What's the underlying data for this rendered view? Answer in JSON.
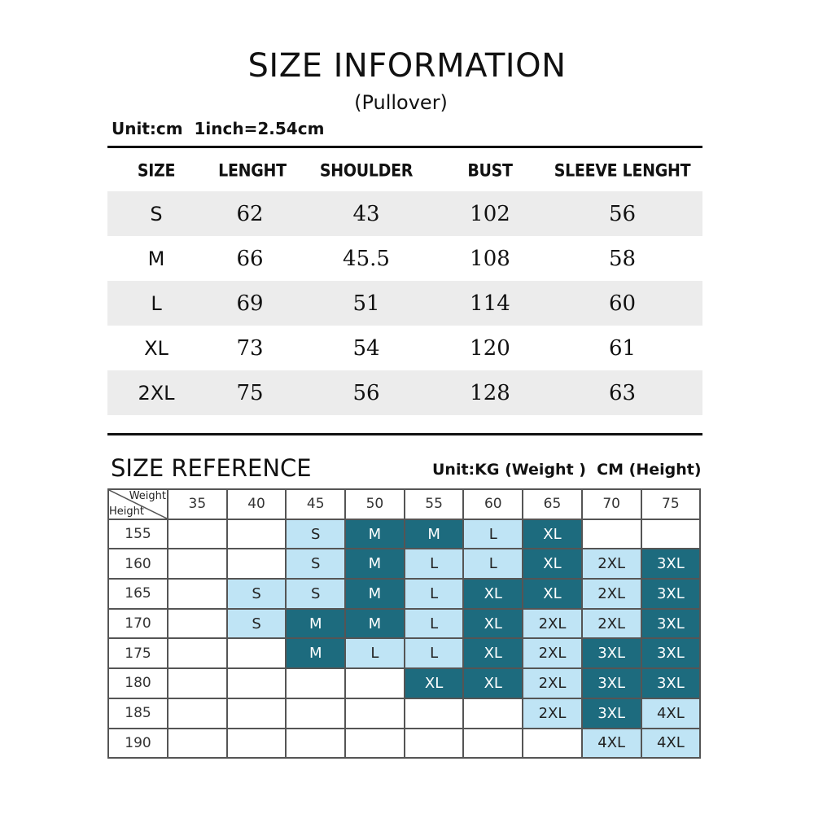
{
  "title": "SIZE INFORMATION",
  "subtitle": "(Pullover)",
  "unit_note": "Unit:cm  1inch=2.54cm",
  "size_table": {
    "headers": [
      "SIZE",
      "LENGHT",
      "SHOULDER",
      "BUST",
      "SLEEVE LENGHT"
    ],
    "rows": [
      [
        "S",
        "62",
        "43",
        "102",
        "56"
      ],
      [
        "M",
        "66",
        "45.5",
        "108",
        "58"
      ],
      [
        "L",
        "69",
        "51",
        "114",
        "60"
      ],
      [
        "XL",
        "73",
        "54",
        "120",
        "61"
      ],
      [
        "2XL",
        "75",
        "56",
        "128",
        "63"
      ]
    ]
  },
  "reference": {
    "title": "SIZE REFERENCE",
    "unit": "Unit:KG (Weight )  CM (Height)",
    "corner_weight": "Weight",
    "corner_height": "Height",
    "weights": [
      "35",
      "40",
      "45",
      "50",
      "55",
      "60",
      "65",
      "70",
      "75"
    ],
    "heights": [
      "155",
      "160",
      "165",
      "170",
      "175",
      "180",
      "185",
      "190"
    ],
    "colors": {
      "light": "#bfe4f5",
      "dark": "#1d6b7e"
    },
    "rows": [
      [
        [
          "",
          ""
        ],
        [
          "",
          ""
        ],
        [
          "S",
          "light"
        ],
        [
          "M",
          "dark"
        ],
        [
          "M",
          "dark"
        ],
        [
          "L",
          "light"
        ],
        [
          "XL",
          "dark"
        ],
        [
          "",
          ""
        ],
        [
          "",
          ""
        ]
      ],
      [
        [
          "",
          ""
        ],
        [
          "",
          ""
        ],
        [
          "S",
          "light"
        ],
        [
          "M",
          "dark"
        ],
        [
          "L",
          "light"
        ],
        [
          "L",
          "light"
        ],
        [
          "XL",
          "dark"
        ],
        [
          "2XL",
          "light"
        ],
        [
          "3XL",
          "dark"
        ]
      ],
      [
        [
          "",
          ""
        ],
        [
          "S",
          "light"
        ],
        [
          "S",
          "light"
        ],
        [
          "M",
          "dark"
        ],
        [
          "L",
          "light"
        ],
        [
          "XL",
          "dark"
        ],
        [
          "XL",
          "dark"
        ],
        [
          "2XL",
          "light"
        ],
        [
          "3XL",
          "dark"
        ]
      ],
      [
        [
          "",
          ""
        ],
        [
          "S",
          "light"
        ],
        [
          "M",
          "dark"
        ],
        [
          "M",
          "dark"
        ],
        [
          "L",
          "light"
        ],
        [
          "XL",
          "dark"
        ],
        [
          "2XL",
          "light"
        ],
        [
          "2XL",
          "light"
        ],
        [
          "3XL",
          "dark"
        ]
      ],
      [
        [
          "",
          ""
        ],
        [
          "",
          ""
        ],
        [
          "M",
          "dark"
        ],
        [
          "L",
          "light"
        ],
        [
          "L",
          "light"
        ],
        [
          "XL",
          "dark"
        ],
        [
          "2XL",
          "light"
        ],
        [
          "3XL",
          "dark"
        ],
        [
          "3XL",
          "dark"
        ]
      ],
      [
        [
          "",
          ""
        ],
        [
          "",
          ""
        ],
        [
          "",
          ""
        ],
        [
          "",
          ""
        ],
        [
          "XL",
          "dark"
        ],
        [
          "XL",
          "dark"
        ],
        [
          "2XL",
          "light"
        ],
        [
          "3XL",
          "dark"
        ],
        [
          "3XL",
          "dark"
        ]
      ],
      [
        [
          "",
          ""
        ],
        [
          "",
          ""
        ],
        [
          "",
          ""
        ],
        [
          "",
          ""
        ],
        [
          "",
          ""
        ],
        [
          "",
          ""
        ],
        [
          "2XL",
          "light"
        ],
        [
          "3XL",
          "dark"
        ],
        [
          "4XL",
          "light"
        ]
      ],
      [
        [
          "",
          ""
        ],
        [
          "",
          ""
        ],
        [
          "",
          ""
        ],
        [
          "",
          ""
        ],
        [
          "",
          ""
        ],
        [
          "",
          ""
        ],
        [
          "",
          ""
        ],
        [
          "4XL",
          "light"
        ],
        [
          "4XL",
          "light"
        ]
      ]
    ]
  }
}
